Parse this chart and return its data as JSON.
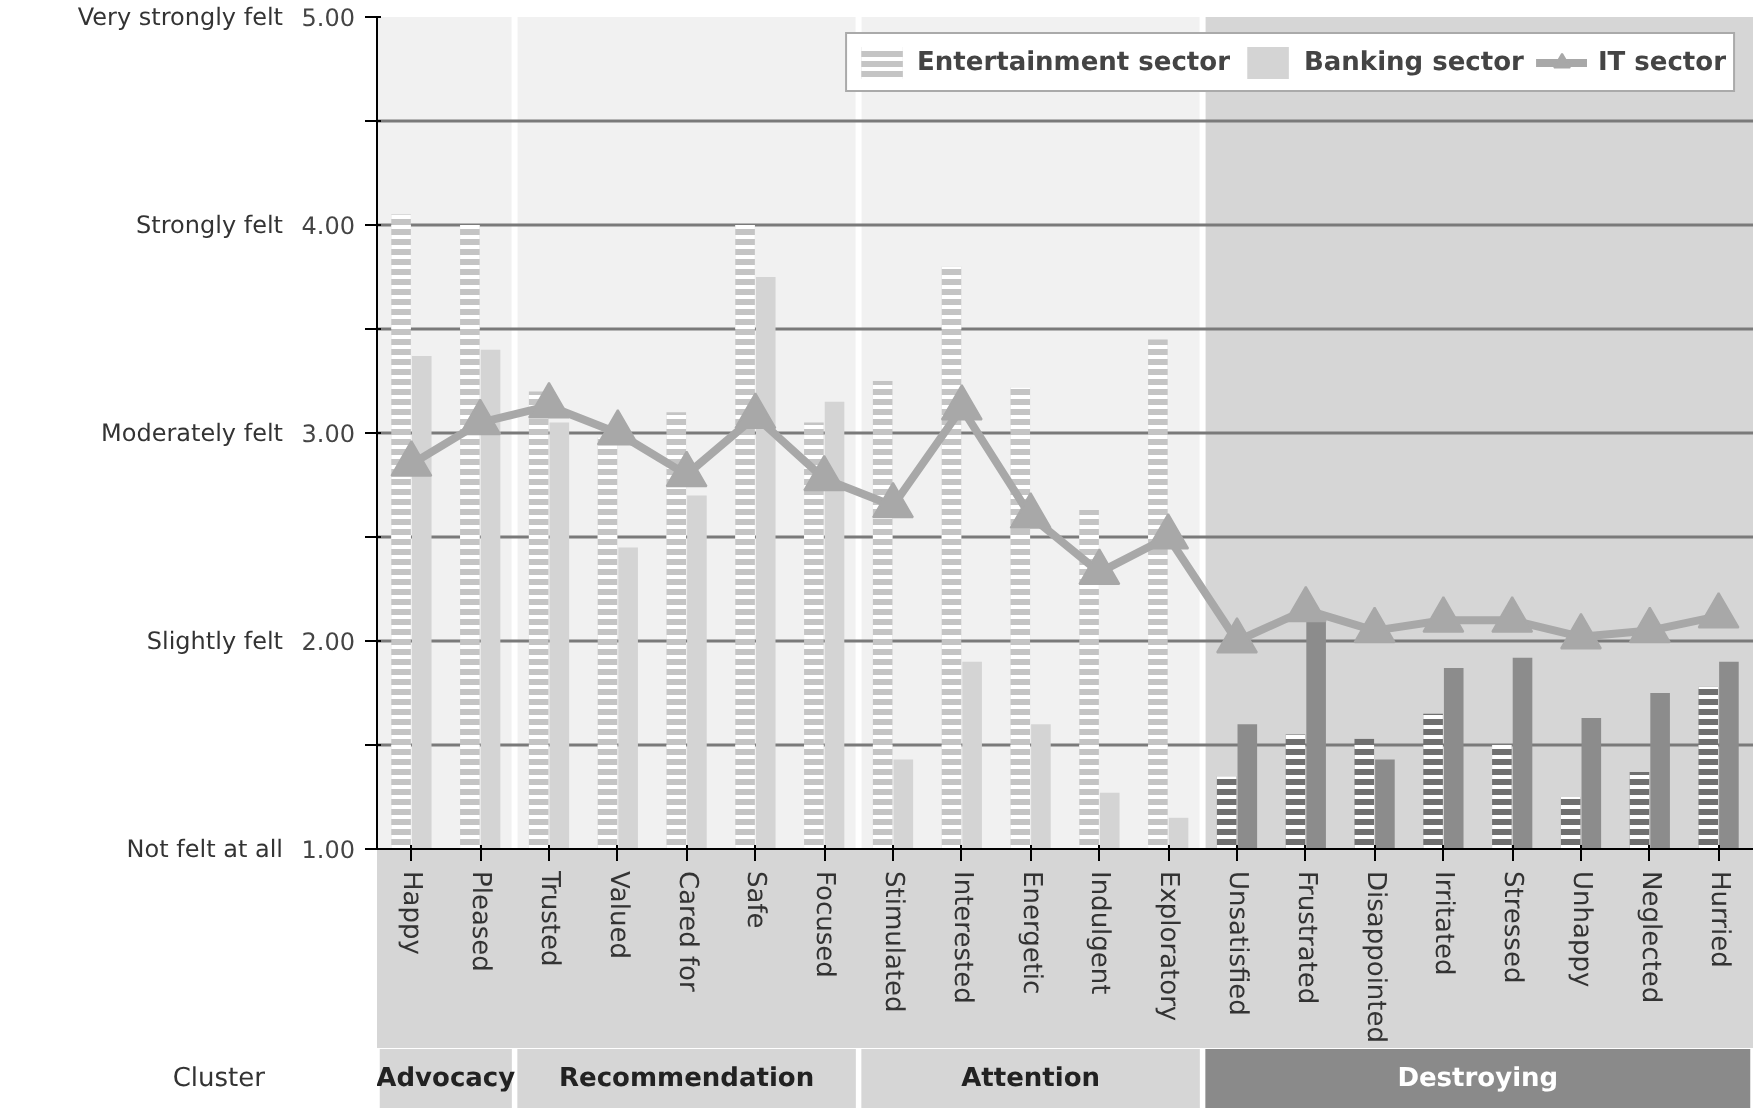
{
  "chart_data": {
    "type": "bar",
    "categories": [
      "Happy",
      "Pleased",
      "Trusted",
      "Valued",
      "Cared for",
      "Safe",
      "Focused",
      "Stimulated",
      "Interested",
      "Energetic",
      "Indulgent",
      "Exploratory",
      "Unsatisfied",
      "Frustrated",
      "Disappointed",
      "Irritated",
      "Stressed",
      "Unhappy",
      "Neglected",
      "Hurried"
    ],
    "series": [
      {
        "name": "Entertainment sector",
        "colors": [
          "#c4c4c4",
          "#c4c4c4",
          "#c4c4c4",
          "#c4c4c4",
          "#c4c4c4",
          "#c4c4c4",
          "#c4c4c4",
          "#c4c4c4",
          "#c4c4c4",
          "#c4c4c4",
          "#c4c4c4",
          "#c4c4c4",
          "#707070",
          "#707070",
          "#707070",
          "#707070",
          "#707070",
          "#707070",
          "#707070",
          "#707070"
        ],
        "values": [
          4.05,
          4.0,
          3.2,
          2.98,
          3.1,
          4.0,
          3.05,
          3.25,
          3.8,
          3.22,
          2.63,
          3.45,
          1.35,
          1.55,
          1.53,
          1.65,
          1.5,
          1.25,
          1.37,
          1.78
        ]
      },
      {
        "name": "Banking sector",
        "colors": [
          "#d4d4d4",
          "#d4d4d4",
          "#d4d4d4",
          "#d4d4d4",
          "#d4d4d4",
          "#d4d4d4",
          "#d4d4d4",
          "#d4d4d4",
          "#d4d4d4",
          "#d4d4d4",
          "#d4d4d4",
          "#d4d4d4",
          "#8c8c8c",
          "#8c8c8c",
          "#8c8c8c",
          "#8c8c8c",
          "#8c8c8c",
          "#8c8c8c",
          "#8c8c8c",
          "#8c8c8c"
        ],
        "values": [
          3.37,
          3.4,
          3.05,
          2.45,
          2.7,
          3.75,
          3.15,
          1.43,
          1.9,
          1.6,
          1.27,
          1.15,
          1.6,
          2.1,
          1.43,
          1.87,
          1.92,
          1.63,
          1.75,
          1.9
        ]
      },
      {
        "name": "IT sector",
        "type": "line",
        "color": "#a8a8a8",
        "values": [
          2.85,
          3.05,
          3.13,
          3.0,
          2.8,
          3.08,
          2.78,
          2.65,
          3.12,
          2.6,
          2.33,
          2.5,
          2.0,
          2.15,
          2.05,
          2.1,
          2.1,
          2.02,
          2.05,
          2.12
        ]
      }
    ],
    "ylim": [
      1,
      5
    ],
    "yticks": [
      {
        "value": 1,
        "label": "1.00"
      },
      {
        "value": 1.5,
        "label": null
      },
      {
        "value": 2,
        "label": "2.00"
      },
      {
        "value": 2.5,
        "label": null
      },
      {
        "value": 3,
        "label": "3.00"
      },
      {
        "value": 3.5,
        "label": null
      },
      {
        "value": 4,
        "label": "4.00"
      },
      {
        "value": 4.5,
        "label": null
      },
      {
        "value": 5,
        "label": "5.00"
      }
    ],
    "bands": [
      {
        "axis": "x",
        "from": "Happy",
        "to": "Pleased",
        "color": "#d6d6d6"
      },
      {
        "axis": "x",
        "from": "Trusted",
        "to": "Focused",
        "color": "#d6d6d6"
      },
      {
        "axis": "x",
        "from": "Stimulated",
        "to": "Exploratory",
        "color": "#d6d6d6"
      },
      {
        "axis": "x",
        "from": "Unsatisfied",
        "to": "Hurried",
        "color": "#8a8a8a"
      }
    ],
    "annotations": [
      "Cluster",
      "Not felt at all",
      "Slightly felt",
      "Moderately felt",
      "Strongly felt",
      "Very strongly felt",
      "Advocacy",
      "Recommendation",
      "Attention",
      "Destroying"
    ],
    "marker": "triangle",
    "grid": "y",
    "legend": "top right"
  }
}
